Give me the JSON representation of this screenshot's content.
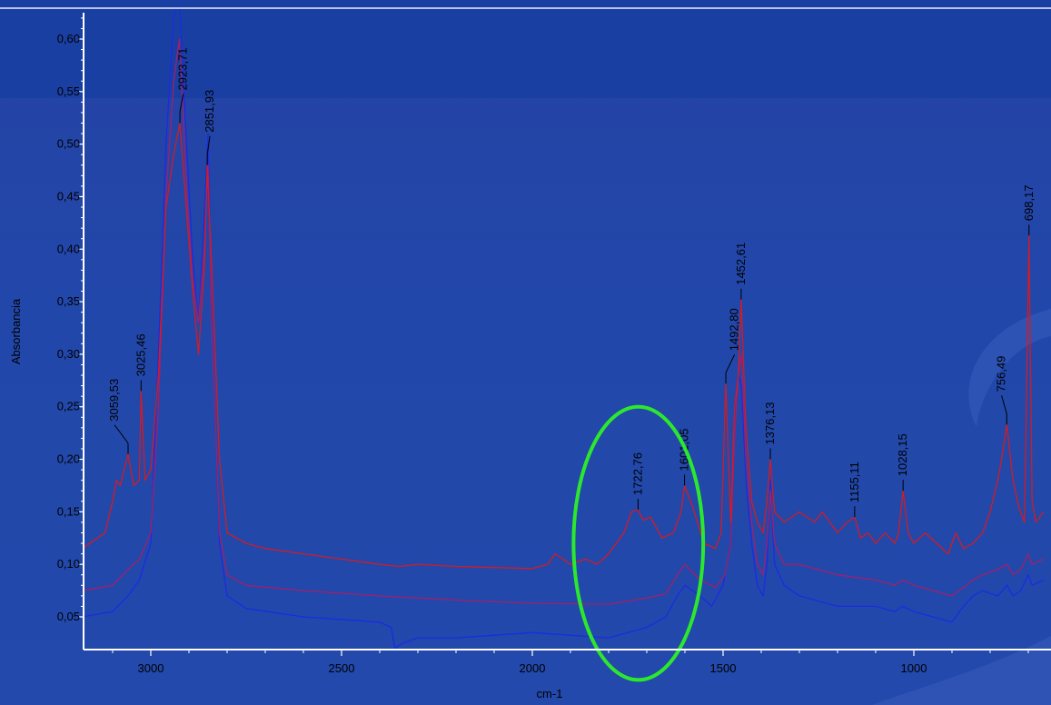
{
  "chart_data": {
    "type": "line",
    "title": "",
    "xlabel": "cm-1",
    "ylabel": "Absorbancia",
    "xlim": [
      3180,
      870
    ],
    "ylim": [
      0.02,
      0.63
    ],
    "x_reversed": true,
    "xticks": [
      3000,
      2500,
      2000,
      1500,
      1000
    ],
    "xtick_labels": [
      "3000",
      "2500",
      "2000",
      "1500",
      "1000"
    ],
    "yticks": [
      0.05,
      0.1,
      0.15,
      0.2,
      0.25,
      0.3,
      0.35,
      0.4,
      0.45,
      0.5,
      0.55,
      0.6
    ],
    "ytick_labels": [
      "0,05",
      "0,10",
      "0,15",
      "0,20",
      "0,25",
      "0,30",
      "0,35",
      "0,40",
      "0,45",
      "0,50",
      "0,55",
      "0,60"
    ],
    "grid": false,
    "legend": "none",
    "colors": {
      "red": "#d11c25",
      "purple": "#a0206a",
      "blue": "#1b2be0",
      "highlight": "#2ce82c"
    },
    "series": [
      {
        "color": "#d11c25",
        "x": [
          3180,
          3120,
          3100,
          3090,
          3080,
          3070,
          3059.53,
          3045,
          3030,
          3025.46,
          3015,
          3000,
          2980,
          2960,
          2940,
          2923.71,
          2905,
          2890,
          2875,
          2860,
          2851.93,
          2840,
          2820,
          2800,
          2750,
          2700,
          2600,
          2500,
          2400,
          2350,
          2300,
          2200,
          2100,
          2000,
          1960,
          1940,
          1900,
          1860,
          1830,
          1800,
          1760,
          1740,
          1722.76,
          1710,
          1690,
          1660,
          1630,
          1610,
          1601.05,
          1580,
          1550,
          1520,
          1505,
          1492.8,
          1480,
          1470,
          1460,
          1452.61,
          1440,
          1425,
          1410,
          1395,
          1385,
          1376.13,
          1365,
          1340,
          1300,
          1260,
          1240,
          1200,
          1175,
          1155.11,
          1140,
          1120,
          1100,
          1075,
          1050,
          1040,
          1028.15,
          1015,
          1000,
          970,
          940,
          910,
          890,
          870,
          845,
          820,
          800,
          780,
          770,
          756.49,
          740,
          725,
          710,
          698.17,
          690,
          680,
          660
        ],
        "y": [
          0.115,
          0.13,
          0.16,
          0.18,
          0.175,
          0.19,
          0.205,
          0.175,
          0.18,
          0.265,
          0.18,
          0.19,
          0.28,
          0.44,
          0.49,
          0.52,
          0.43,
          0.36,
          0.3,
          0.38,
          0.48,
          0.38,
          0.2,
          0.13,
          0.12,
          0.115,
          0.11,
          0.105,
          0.1,
          0.098,
          0.1,
          0.098,
          0.097,
          0.096,
          0.1,
          0.11,
          0.1,
          0.105,
          0.1,
          0.11,
          0.13,
          0.15,
          0.152,
          0.142,
          0.145,
          0.125,
          0.13,
          0.15,
          0.175,
          0.155,
          0.12,
          0.115,
          0.13,
          0.272,
          0.14,
          0.25,
          0.28,
          0.352,
          0.23,
          0.16,
          0.14,
          0.13,
          0.16,
          0.2,
          0.15,
          0.14,
          0.15,
          0.14,
          0.15,
          0.13,
          0.14,
          0.145,
          0.125,
          0.13,
          0.12,
          0.13,
          0.12,
          0.13,
          0.17,
          0.13,
          0.12,
          0.13,
          0.12,
          0.11,
          0.13,
          0.115,
          0.12,
          0.13,
          0.15,
          0.18,
          0.2,
          0.233,
          0.18,
          0.155,
          0.14,
          0.413,
          0.16,
          0.14,
          0.15
        ]
      },
      {
        "color": "#a0206a",
        "x": [
          3180,
          3100,
          3060,
          3030,
          3000,
          2980,
          2960,
          2940,
          2925,
          2905,
          2890,
          2875,
          2860,
          2850,
          2840,
          2820,
          2800,
          2750,
          2600,
          2400,
          2300,
          2200,
          2000,
          1800,
          1700,
          1650,
          1620,
          1600,
          1560,
          1520,
          1495,
          1480,
          1470,
          1460,
          1452,
          1440,
          1425,
          1410,
          1395,
          1385,
          1376,
          1365,
          1340,
          1300,
          1200,
          1100,
          1050,
          1030,
          1000,
          950,
          900,
          870,
          845,
          820,
          780,
          756,
          740,
          720,
          700,
          690,
          660
        ],
        "y": [
          0.075,
          0.08,
          0.095,
          0.105,
          0.13,
          0.25,
          0.45,
          0.56,
          0.6,
          0.45,
          0.37,
          0.33,
          0.4,
          0.48,
          0.33,
          0.13,
          0.09,
          0.08,
          0.075,
          0.07,
          0.068,
          0.066,
          0.063,
          0.062,
          0.068,
          0.072,
          0.09,
          0.1,
          0.085,
          0.078,
          0.09,
          0.12,
          0.22,
          0.28,
          0.3,
          0.2,
          0.14,
          0.1,
          0.09,
          0.12,
          0.17,
          0.12,
          0.1,
          0.1,
          0.09,
          0.085,
          0.08,
          0.085,
          0.08,
          0.075,
          0.07,
          0.078,
          0.085,
          0.09,
          0.095,
          0.1,
          0.09,
          0.095,
          0.11,
          0.1,
          0.105
        ]
      },
      {
        "color": "#1b2be0",
        "x": [
          3180,
          3100,
          3060,
          3030,
          3000,
          2980,
          2960,
          2940,
          2925,
          2905,
          2890,
          2875,
          2860,
          2850,
          2840,
          2820,
          2800,
          2750,
          2600,
          2400,
          2370,
          2360,
          2340,
          2300,
          2200,
          2000,
          1800,
          1700,
          1650,
          1620,
          1600,
          1560,
          1530,
          1500,
          1480,
          1470,
          1460,
          1452,
          1440,
          1425,
          1410,
          1395,
          1385,
          1376,
          1365,
          1340,
          1300,
          1200,
          1100,
          1050,
          1030,
          1000,
          950,
          900,
          870,
          845,
          820,
          780,
          756,
          740,
          720,
          700,
          690,
          660
        ],
        "y": [
          0.05,
          0.055,
          0.07,
          0.085,
          0.12,
          0.3,
          0.5,
          0.62,
          0.64,
          0.49,
          0.39,
          0.33,
          0.43,
          0.51,
          0.34,
          0.12,
          0.07,
          0.058,
          0.05,
          0.045,
          0.04,
          0.02,
          0.025,
          0.03,
          0.03,
          0.035,
          0.03,
          0.04,
          0.05,
          0.07,
          0.08,
          0.07,
          0.06,
          0.08,
          0.12,
          0.25,
          0.28,
          0.27,
          0.18,
          0.12,
          0.08,
          0.07,
          0.1,
          0.18,
          0.1,
          0.08,
          0.07,
          0.06,
          0.06,
          0.055,
          0.06,
          0.055,
          0.05,
          0.045,
          0.06,
          0.07,
          0.075,
          0.07,
          0.08,
          0.07,
          0.075,
          0.09,
          0.08,
          0.085
        ]
      }
    ],
    "peak_labels": [
      {
        "x": 3059.53,
        "y": 0.205,
        "label": "3059,53",
        "text_x": 3095
      },
      {
        "x": 3025.46,
        "y": 0.265,
        "label": "3025,46",
        "text_x": 3025.46
      },
      {
        "x": 2923.71,
        "y": 0.52,
        "label": "2923,71",
        "text_x": 2915
      },
      {
        "x": 2851.93,
        "y": 0.48,
        "label": "2851,93",
        "text_x": 2845
      },
      {
        "x": 1722.76,
        "y": 0.152,
        "label": "1722,76",
        "text_x": 1722.76
      },
      {
        "x": 1601.05,
        "y": 0.175,
        "label": "1601,05",
        "text_x": 1601.05
      },
      {
        "x": 1492.8,
        "y": 0.272,
        "label": "1492,80",
        "text_x": 1470
      },
      {
        "x": 1452.61,
        "y": 0.352,
        "label": "1452,61",
        "text_x": 1452.61
      },
      {
        "x": 1376.13,
        "y": 0.2,
        "label": "1376,13",
        "text_x": 1376.13
      },
      {
        "x": 1155.11,
        "y": 0.145,
        "label": "1155,11",
        "text_x": 1155.11
      },
      {
        "x": 1028.15,
        "y": 0.17,
        "label": "1028,15",
        "text_x": 1028.15
      },
      {
        "x": 756.49,
        "y": 0.233,
        "label": "756,49",
        "text_x": 770
      },
      {
        "x": 698.17,
        "y": 0.413,
        "label": "698,17",
        "text_x": 698.17
      }
    ],
    "annotation": {
      "type": "ellipse",
      "color": "#2ce82c",
      "center_x": 1722,
      "center_y": 0.12,
      "radius_x_units": 170,
      "radius_y_units": 0.13
    }
  }
}
